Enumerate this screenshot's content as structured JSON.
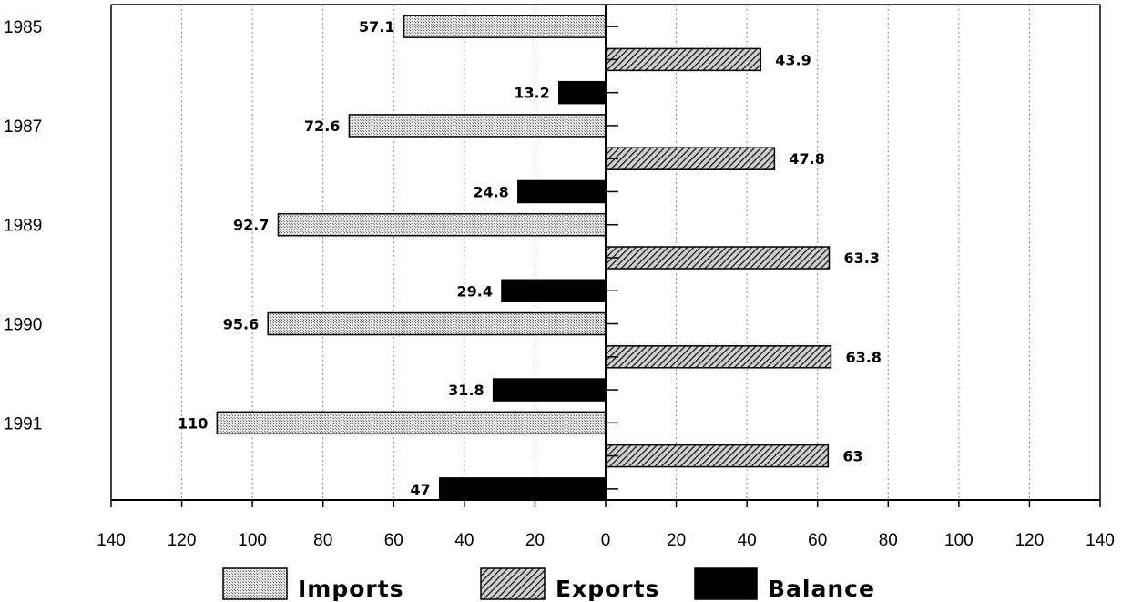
{
  "chart_data": {
    "type": "bar",
    "orientation": "horizontal-diverging",
    "categories": [
      "1985",
      "1987",
      "1989",
      "1990",
      "1991"
    ],
    "series": [
      {
        "name": "Imports",
        "values": [
          57.1,
          72.6,
          92.7,
          95.6,
          110
        ],
        "labels": [
          "57.1",
          "72.6",
          "92.7",
          "95.6",
          "110"
        ],
        "direction": "left",
        "pattern": "stipple"
      },
      {
        "name": "Exports",
        "values": [
          43.9,
          47.8,
          63.3,
          63.8,
          63
        ],
        "labels": [
          "43.9",
          "47.8",
          "63.3",
          "63.8",
          "63"
        ],
        "direction": "right",
        "pattern": "hatch"
      },
      {
        "name": "Balance",
        "values": [
          13.2,
          24.8,
          29.4,
          31.8,
          47
        ],
        "labels": [
          "13.2",
          "24.8",
          "29.4",
          "31.8",
          "47"
        ],
        "direction": "left",
        "pattern": "solid"
      }
    ],
    "xlim": [
      -140,
      140
    ],
    "x_tick_values": [
      -140,
      -120,
      -100,
      -80,
      -60,
      -40,
      -20,
      0,
      20,
      40,
      60,
      80,
      100,
      120,
      140
    ],
    "x_tick_labels": [
      "140",
      "120",
      "100",
      "80",
      "60",
      "40",
      "20",
      "0",
      "20",
      "40",
      "60",
      "80",
      "100",
      "120",
      "140"
    ],
    "title": "",
    "xlabel": "",
    "ylabel": "",
    "grid": "vertical-dashed",
    "legend_position": "bottom"
  }
}
